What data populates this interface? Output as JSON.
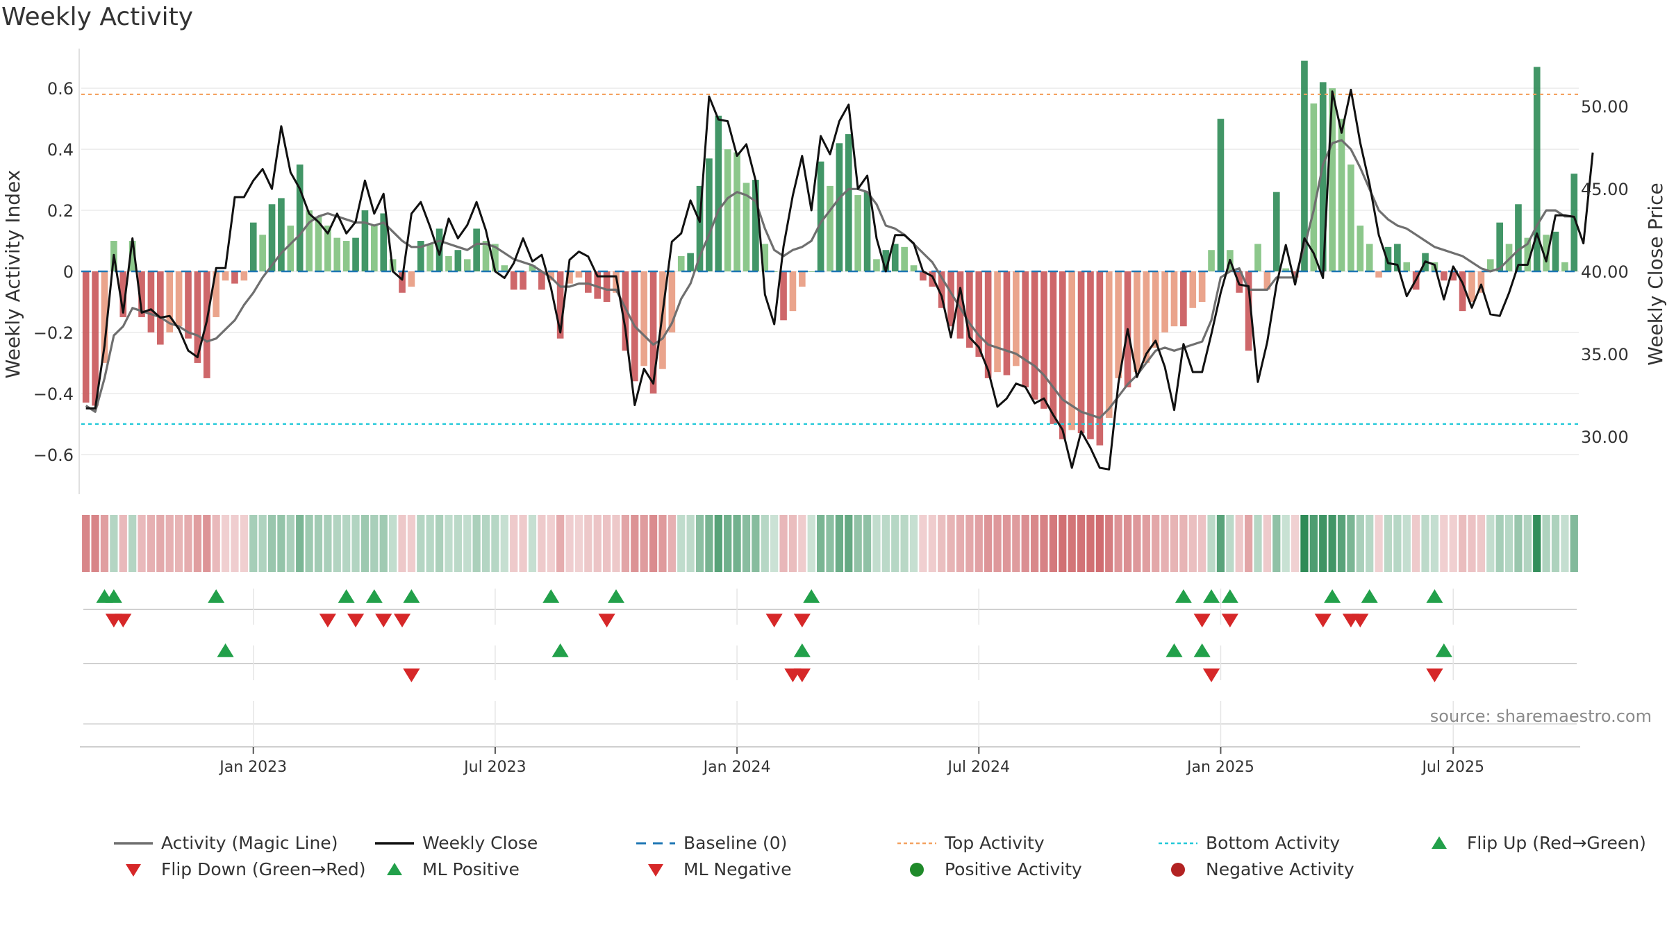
{
  "title": "Weekly Activity",
  "source": "source: sharemaestro.com",
  "colors": {
    "green_strong": "#2e8b57",
    "green_light": "#80c17e",
    "red_strong": "#c9565a",
    "red_light": "#e89a7f",
    "magic_line": "#6f6f6f",
    "close_line": "#111111",
    "baseline": "#1f77b4",
    "top": "#f4a261",
    "bottom": "#22c8d8",
    "marker_green": "#22a04a",
    "marker_red": "#d62728"
  },
  "chart_data": {
    "type": "bar",
    "title": "Weekly Activity",
    "ylabel_left": "Weekly Activity Index",
    "ylabel_right": "Weekly Close Price",
    "start_date": "2022-08-29",
    "frequency": "weekly",
    "left_ylim": [
      -0.73,
      0.73
    ],
    "right_ylim": [
      26.5,
      53.5
    ],
    "left_ticks": [
      {
        "v": 0.6,
        "label": "0.6"
      },
      {
        "v": 0.4,
        "label": "0.4"
      },
      {
        "v": 0.2,
        "label": "0.2"
      },
      {
        "v": 0,
        "label": "0"
      },
      {
        "v": -0.2,
        "label": "−0.2"
      },
      {
        "v": -0.4,
        "label": "−0.4"
      },
      {
        "v": -0.6,
        "label": "−0.6"
      }
    ],
    "right_ticks": [
      {
        "v": 50,
        "label": "50.00"
      },
      {
        "v": 45,
        "label": "45.00"
      },
      {
        "v": 40,
        "label": "40.00"
      },
      {
        "v": 35,
        "label": "35.00"
      },
      {
        "v": 30,
        "label": "30.00"
      }
    ],
    "x_ticks": [
      {
        "index": 18,
        "label": "Jan 2023"
      },
      {
        "index": 44,
        "label": "Jul 2023"
      },
      {
        "index": 70,
        "label": "Jan 2024"
      },
      {
        "index": 96,
        "label": "Jul 2024"
      },
      {
        "index": 122,
        "label": "Jan 2025"
      },
      {
        "index": 147,
        "label": "Jul 2025"
      }
    ],
    "top_activity": 0.58,
    "bottom_activity": -0.5,
    "activity": [
      -0.43,
      -0.44,
      -0.3,
      0.1,
      -0.15,
      0.1,
      -0.15,
      -0.2,
      -0.24,
      -0.2,
      -0.18,
      -0.22,
      -0.3,
      -0.35,
      -0.15,
      -0.03,
      -0.04,
      -0.03,
      0.16,
      0.12,
      0.22,
      0.24,
      0.15,
      0.35,
      0.2,
      0.18,
      0.15,
      0.11,
      0.1,
      0.11,
      0.2,
      0.15,
      0.19,
      0.04,
      -0.07,
      -0.05,
      0.1,
      0.09,
      0.14,
      0.05,
      0.07,
      0.04,
      0.14,
      0.1,
      0.09,
      0.02,
      -0.06,
      -0.06,
      0.02,
      -0.06,
      -0.03,
      -0.22,
      -0.04,
      -0.02,
      -0.07,
      -0.09,
      -0.1,
      -0.07,
      -0.26,
      -0.36,
      -0.31,
      -0.4,
      -0.32,
      -0.2,
      0.05,
      0.06,
      0.28,
      0.37,
      0.51,
      0.4,
      0.39,
      0.29,
      0.3,
      0.09,
      0.0,
      -0.16,
      -0.13,
      -0.05,
      0.0,
      0.36,
      0.28,
      0.42,
      0.45,
      0.25,
      0.26,
      0.04,
      0.07,
      0.09,
      0.08,
      0.02,
      -0.03,
      -0.05,
      -0.12,
      -0.18,
      -0.22,
      -0.25,
      -0.28,
      -0.35,
      -0.33,
      -0.34,
      -0.31,
      -0.38,
      -0.42,
      -0.45,
      -0.5,
      -0.55,
      -0.52,
      -0.53,
      -0.55,
      -0.57,
      -0.48,
      -0.35,
      -0.38,
      -0.33,
      -0.3,
      -0.25,
      -0.2,
      -0.18,
      -0.18,
      -0.12,
      -0.1,
      0.07,
      0.5,
      0.07,
      -0.07,
      -0.26,
      0.09,
      -0.06,
      0.26,
      0.01,
      -0.02,
      0.69,
      0.55,
      0.62,
      0.6,
      0.5,
      0.35,
      0.15,
      0.09,
      -0.02,
      0.08,
      0.09,
      0.03,
      -0.06,
      0.06,
      0.03,
      -0.03,
      -0.03,
      -0.13,
      -0.1,
      -0.07,
      0.04,
      0.16,
      0.09,
      0.22,
      0.11,
      0.67,
      0.12,
      0.13,
      0.03,
      0.32
    ],
    "magic_line": [
      -0.44,
      -0.46,
      -0.35,
      -0.21,
      -0.18,
      -0.12,
      -0.13,
      -0.14,
      -0.15,
      -0.17,
      -0.18,
      -0.2,
      -0.21,
      -0.23,
      -0.22,
      -0.19,
      -0.16,
      -0.11,
      -0.07,
      -0.02,
      0.02,
      0.06,
      0.09,
      0.12,
      0.16,
      0.18,
      0.19,
      0.18,
      0.17,
      0.16,
      0.16,
      0.15,
      0.16,
      0.13,
      0.1,
      0.08,
      0.08,
      0.09,
      0.1,
      0.09,
      0.08,
      0.07,
      0.09,
      0.09,
      0.08,
      0.06,
      0.04,
      0.03,
      0.02,
      0.0,
      -0.02,
      -0.05,
      -0.05,
      -0.04,
      -0.04,
      -0.05,
      -0.06,
      -0.06,
      -0.12,
      -0.18,
      -0.21,
      -0.24,
      -0.22,
      -0.17,
      -0.09,
      -0.04,
      0.05,
      0.12,
      0.2,
      0.24,
      0.26,
      0.25,
      0.23,
      0.14,
      0.07,
      0.05,
      0.07,
      0.08,
      0.1,
      0.16,
      0.2,
      0.24,
      0.27,
      0.27,
      0.26,
      0.22,
      0.15,
      0.14,
      0.12,
      0.09,
      0.06,
      0.03,
      -0.02,
      -0.07,
      -0.12,
      -0.17,
      -0.21,
      -0.24,
      -0.25,
      -0.26,
      -0.27,
      -0.29,
      -0.31,
      -0.34,
      -0.38,
      -0.42,
      -0.44,
      -0.46,
      -0.47,
      -0.48,
      -0.45,
      -0.41,
      -0.37,
      -0.34,
      -0.3,
      -0.26,
      -0.25,
      -0.26,
      -0.25,
      -0.24,
      -0.23,
      -0.16,
      -0.02,
      0.0,
      0.01,
      -0.06,
      -0.06,
      -0.06,
      -0.02,
      -0.02,
      -0.02,
      0.08,
      0.2,
      0.35,
      0.42,
      0.43,
      0.4,
      0.34,
      0.27,
      0.2,
      0.17,
      0.15,
      0.14,
      0.12,
      0.1,
      0.08,
      0.07,
      0.06,
      0.05,
      0.03,
      0.01,
      0.0,
      0.01,
      0.04,
      0.07,
      0.09,
      0.15,
      0.2,
      0.2,
      0.18,
      0.18
    ],
    "weekly_close": [
      31.7,
      31.7,
      35.5,
      41.0,
      37.5,
      42.0,
      37.5,
      37.7,
      37.2,
      37.3,
      36.5,
      35.2,
      34.8,
      37.0,
      40.2,
      40.2,
      44.5,
      44.5,
      45.5,
      46.2,
      45.0,
      48.8,
      46.0,
      45.0,
      43.5,
      43.0,
      42.3,
      43.5,
      42.3,
      43.0,
      45.5,
      43.5,
      44.7,
      40.0,
      39.5,
      43.5,
      44.2,
      42.7,
      41.0,
      43.2,
      42.0,
      42.8,
      44.2,
      42.5,
      40.0,
      39.6,
      40.5,
      42.0,
      40.6,
      41.0,
      39.0,
      36.3,
      40.7,
      41.2,
      40.9,
      39.7,
      39.7,
      39.7,
      36.5,
      31.9,
      34.1,
      33.2,
      37.5,
      41.8,
      42.3,
      44.3,
      43.0,
      50.6,
      49.2,
      49.1,
      47.0,
      47.7,
      45.5,
      38.6,
      36.8,
      41.5,
      44.6,
      47.0,
      43.7,
      48.2,
      47.1,
      49.1,
      50.1,
      45.0,
      45.8,
      42.0,
      40.0,
      42.2,
      42.2,
      41.7,
      40.0,
      39.7,
      38.5,
      36.0,
      39.0,
      36.0,
      35.4,
      34.0,
      31.8,
      32.3,
      33.2,
      33.0,
      32.0,
      32.3,
      31.3,
      30.4,
      28.1,
      30.3,
      29.3,
      28.1,
      28.0,
      33.2,
      36.5,
      33.6,
      35.0,
      35.8,
      34.2,
      31.6,
      35.6,
      33.9,
      33.9,
      36.2,
      38.7,
      40.7,
      39.2,
      39.1,
      33.3,
      35.7,
      39.2,
      41.6,
      39.2,
      42.0,
      41.1,
      39.6,
      50.9,
      48.4,
      51.0,
      47.8,
      45.3,
      42.2,
      40.5,
      40.4,
      38.5,
      39.5,
      40.6,
      40.4,
      38.3,
      40.3,
      39.3,
      37.8,
      39.2,
      37.4,
      37.3,
      38.7,
      40.4,
      40.4,
      42.3,
      40.6,
      43.4,
      43.4,
      43.3,
      41.7,
      47.2
    ],
    "indicator_strip_1": {
      "flip_up": [
        2,
        3,
        14,
        28,
        31,
        35,
        50,
        57,
        78,
        118,
        121,
        123,
        134,
        138,
        145
      ],
      "flip_down": [
        3,
        4,
        26,
        29,
        32,
        34,
        56,
        74,
        77,
        120,
        123,
        133,
        136,
        137
      ]
    },
    "indicator_strip_2": {
      "ml_positive": [
        15,
        51,
        77,
        117,
        120,
        146
      ],
      "ml_negative": [
        35,
        76,
        77,
        121,
        145
      ]
    },
    "legend": [
      {
        "key": "magic",
        "label": "Activity (Magic Line)"
      },
      {
        "key": "close",
        "label": "Weekly Close"
      },
      {
        "key": "baseline",
        "label": "Baseline (0)"
      },
      {
        "key": "top",
        "label": "Top Activity"
      },
      {
        "key": "bottom",
        "label": "Bottom Activity"
      },
      {
        "key": "flip_up",
        "label": "Flip Up (Red→Green)"
      },
      {
        "key": "flip_down",
        "label": "Flip Down (Green→Red)"
      },
      {
        "key": "ml_pos",
        "label": "ML Positive"
      },
      {
        "key": "ml_neg",
        "label": "ML Negative"
      },
      {
        "key": "pos_act",
        "label": "Positive Activity"
      },
      {
        "key": "neg_act",
        "label": "Negative Activity"
      }
    ]
  }
}
